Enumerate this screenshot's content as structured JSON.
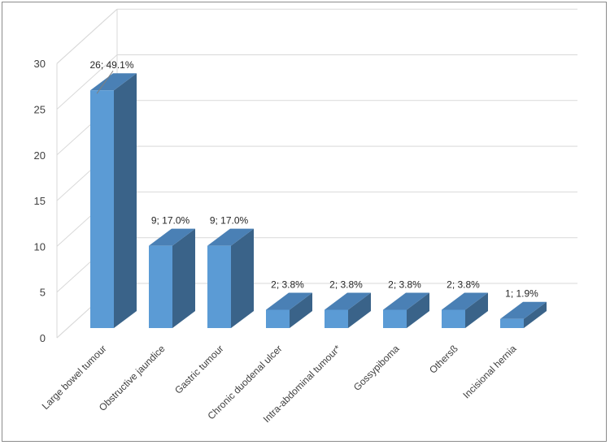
{
  "chart_data": {
    "type": "bar",
    "title": "",
    "xlabel": "",
    "ylabel": "",
    "ylim": [
      0,
      30
    ],
    "yticks": [
      0,
      5,
      10,
      15,
      20,
      25,
      30
    ],
    "grid": true,
    "style": "3d-column",
    "categories": [
      "Large bowel tumour",
      "Obstructive jaundice",
      "Gastric tumour",
      "Chronic duodenal ulcer",
      "Intra-abdominal tumour*",
      "Gossypiboma",
      "Othersß",
      "Incisional hernia"
    ],
    "values": [
      26,
      9,
      9,
      2,
      2,
      2,
      2,
      1
    ],
    "data_labels": [
      "26; 49.1%",
      "9; 17.0%",
      "9; 17.0%",
      "2; 3.8%",
      "2; 3.8%",
      "2;  3.8%",
      "2; 3.8%",
      "1; 1.9%"
    ],
    "colors": {
      "front": "#5b9bd5",
      "side": "#3a6389",
      "top": "#4a80b5",
      "grid": "#d9d9d9",
      "wall": "#d9d9d9"
    }
  }
}
